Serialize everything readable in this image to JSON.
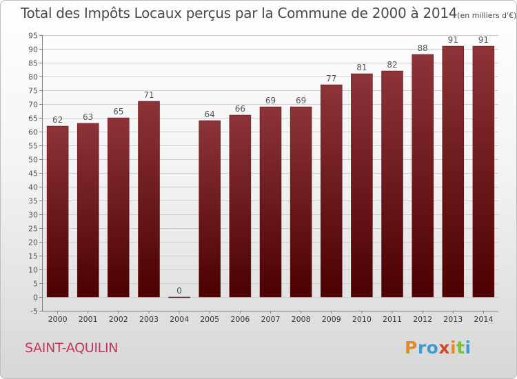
{
  "title": "Total des Impôts Locaux perçus par la Commune de 2000 à 2014",
  "unit_note": "(en milliers d'€)",
  "commune": "SAINT-AQUILIN",
  "brand": {
    "letters": [
      "P",
      "r",
      "o",
      "x",
      "i",
      "t",
      "i"
    ],
    "colors": [
      "#e58a1f",
      "#3f9bd6",
      "#3f9bd6",
      "#d6432f",
      "#e58a1f",
      "#7abf3c",
      "#3f9bd6"
    ]
  },
  "colors": {
    "bar_top": "#8c3438",
    "bar_bottom": "#4c0000",
    "grid": "#cfcfcf",
    "axis": "#808080",
    "text": "#555555"
  },
  "chart_data": {
    "type": "bar",
    "categories": [
      "2000",
      "2001",
      "2002",
      "2003",
      "2004",
      "2005",
      "2006",
      "2007",
      "2008",
      "2009",
      "2010",
      "2011",
      "2012",
      "2013",
      "2014"
    ],
    "values": [
      62,
      63,
      65,
      71,
      0,
      64,
      66,
      69,
      69,
      77,
      81,
      82,
      88,
      91,
      91
    ],
    "ylim": [
      -5,
      95
    ],
    "yticks": [
      -5,
      0,
      5,
      10,
      15,
      20,
      25,
      30,
      35,
      40,
      45,
      50,
      55,
      60,
      65,
      70,
      75,
      80,
      85,
      90,
      95
    ],
    "xlabel": "",
    "ylabel": "",
    "grid": "horizontal",
    "data_labels": true
  }
}
